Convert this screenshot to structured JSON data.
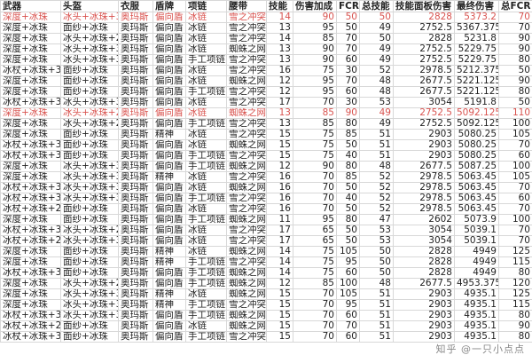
{
  "colors": {
    "highlight": "#d9534f",
    "grid": "#d8d8d8"
  },
  "watermark": "知乎 @一只小点点",
  "columns": [
    "武器",
    "头盔",
    "衣服",
    "盾牌",
    "项链",
    "腰带",
    "技能",
    "伤害加成",
    "FCR",
    "总技能",
    "技能面板伤害",
    "最终伤害",
    "总FCR"
  ],
  "rows": [
    {
      "hl": true,
      "c": [
        "深度+冰珠",
        "冰头+冰珠+3",
        "奥玛斯",
        "偏向盾",
        "冰链",
        "雪之冲突",
        "14",
        "90",
        "50",
        "50",
        "2828",
        "5373.2",
        "70"
      ]
    },
    {
      "c": [
        "深度+冰珠",
        "面纱+冰珠",
        "奥玛斯",
        "偏向盾",
        "冰链",
        "雪之冲突",
        "13",
        "95",
        "50",
        "49",
        "2752.5",
        "5367.375",
        "70"
      ]
    },
    {
      "c": [
        "深度+冰珠",
        "冰头+冰珠+2",
        "奥玛斯",
        "偏向盾",
        "冰链",
        "雪之冲突",
        "14",
        "85",
        "70",
        "50",
        "2828",
        "5231.8",
        "90"
      ]
    },
    {
      "c": [
        "深度+冰珠",
        "冰头+冰珠+3",
        "奥玛斯",
        "偏向盾",
        "冰链",
        "蜘蛛之网",
        "13",
        "90",
        "70",
        "49",
        "2752.5",
        "5229.75",
        "90"
      ]
    },
    {
      "c": [
        "深度+冰珠",
        "冰头+冰珠+3",
        "奥玛斯",
        "偏向盾",
        "手工项链",
        "雪之冲突",
        "13",
        "90",
        "60",
        "49",
        "2752.5",
        "5229.75",
        "80"
      ]
    },
    {
      "c": [
        "冰杖+冰珠+3",
        "面纱+冰珠",
        "奥玛斯",
        "偏向盾",
        "冰链",
        "雪之冲突",
        "16",
        "75",
        "30",
        "52",
        "2978.5",
        "5212.375",
        "50"
      ]
    },
    {
      "c": [
        "深度+冰珠",
        "面纱+冰珠",
        "奥玛斯",
        "偏向盾",
        "冰链",
        "蜘蛛之网",
        "12",
        "95",
        "70",
        "48",
        "2677.5",
        "5221.125",
        "90"
      ]
    },
    {
      "c": [
        "深度+冰珠",
        "面纱+冰珠",
        "奥玛斯",
        "偏向盾",
        "手工项链",
        "雪之冲突",
        "12",
        "95",
        "60",
        "48",
        "2677.5",
        "5221.125",
        "80"
      ]
    },
    {
      "c": [
        "冰杖+冰珠+3",
        "冰头+冰珠+3",
        "奥玛斯",
        "偏向盾",
        "冰链",
        "雪之冲突",
        "17",
        "70",
        "30",
        "53",
        "3054",
        "5191.8",
        "50"
      ]
    },
    {
      "hl": true,
      "c": [
        "深度+冰珠",
        "冰头+冰珠+2",
        "奥玛斯",
        "偏向盾",
        "冰链",
        "蜘蛛之网",
        "13",
        "85",
        "90",
        "49",
        "2752.5",
        "5092.125",
        "110"
      ]
    },
    {
      "c": [
        "深度+冰珠",
        "冰头+冰珠+2",
        "奥玛斯",
        "偏向盾",
        "手工项链",
        "雪之冲突",
        "13",
        "85",
        "80",
        "49",
        "2752.5",
        "5092.125",
        "100"
      ]
    },
    {
      "c": [
        "深度+冰珠",
        "面纱+冰珠",
        "奥玛斯",
        "精神",
        "冰链",
        "雪之冲突",
        "15",
        "75",
        "85",
        "51",
        "2903",
        "5080.25",
        "105"
      ]
    },
    {
      "c": [
        "冰杖+冰珠+3",
        "面纱+冰珠",
        "奥玛斯",
        "偏向盾",
        "冰链",
        "蜘蛛之网",
        "15",
        "75",
        "50",
        "51",
        "2903",
        "5080.25",
        "70"
      ]
    },
    {
      "c": [
        "冰杖+冰珠+3",
        "面纱+冰珠",
        "奥玛斯",
        "偏向盾",
        "手工项链",
        "雪之冲突",
        "15",
        "75",
        "40",
        "51",
        "2903",
        "5080.25",
        "60"
      ]
    },
    {
      "c": [
        "深度+冰珠",
        "冰头+冰珠+3",
        "奥玛斯",
        "偏向盾",
        "手工项链",
        "蜘蛛之网",
        "12",
        "90",
        "80",
        "48",
        "2677.5",
        "5087.25",
        "100"
      ]
    },
    {
      "c": [
        "深度+冰珠",
        "冰头+冰珠+3",
        "奥玛斯",
        "精神",
        "冰链",
        "雪之冲突",
        "16",
        "70",
        "85",
        "52",
        "2978.5",
        "5063.45",
        "105"
      ]
    },
    {
      "c": [
        "冰杖+冰珠+3",
        "冰头+冰珠+3",
        "奥玛斯",
        "偏向盾",
        "冰链",
        "蜘蛛之网",
        "16",
        "70",
        "50",
        "52",
        "2978.5",
        "5063.45",
        "70"
      ]
    },
    {
      "c": [
        "冰杖+冰珠+3",
        "冰头+冰珠+3",
        "奥玛斯",
        "偏向盾",
        "手工项链",
        "雪之冲突",
        "16",
        "70",
        "40",
        "52",
        "2978.5",
        "5063.45",
        "60"
      ]
    },
    {
      "c": [
        "冰杖+冰珠+2",
        "面纱+冰珠",
        "奥玛斯",
        "偏向盾",
        "冰链",
        "雪之冲突",
        "16",
        "70",
        "50",
        "52",
        "2978.5",
        "5063.45",
        "70"
      ]
    },
    {
      "c": [
        "深度+冰珠",
        "面纱+冰珠",
        "奥玛斯",
        "偏向盾",
        "手工项链",
        "蜘蛛之网",
        "11",
        "95",
        "80",
        "47",
        "2602",
        "5073.9",
        "100"
      ]
    },
    {
      "c": [
        "冰杖+冰珠+3",
        "冰头+冰珠+2",
        "奥玛斯",
        "偏向盾",
        "冰链",
        "雪之冲突",
        "17",
        "65",
        "50",
        "53",
        "3054",
        "5039.1",
        "70"
      ]
    },
    {
      "c": [
        "冰杖+冰珠+2",
        "冰头+冰珠+3",
        "奥玛斯",
        "偏向盾",
        "冰链",
        "雪之冲突",
        "17",
        "65",
        "50",
        "53",
        "3054",
        "5039.1",
        "70"
      ]
    },
    {
      "c": [
        "深度+冰珠",
        "面纱+冰珠",
        "奥玛斯",
        "精神",
        "冰链",
        "蜘蛛之网",
        "14",
        "75",
        "105",
        "50",
        "2828",
        "4949",
        "125"
      ]
    },
    {
      "c": [
        "深度+冰珠",
        "面纱+冰珠",
        "奥玛斯",
        "精神",
        "手工项链",
        "雪之冲突",
        "14",
        "75",
        "95",
        "50",
        "2828",
        "4949",
        "115"
      ]
    },
    {
      "c": [
        "冰杖+冰珠+3",
        "面纱+冰珠",
        "奥玛斯",
        "偏向盾",
        "手工项链",
        "蜘蛛之网",
        "14",
        "75",
        "60",
        "50",
        "2828",
        "4949",
        "80"
      ]
    },
    {
      "c": [
        "深度+冰珠",
        "冰头+冰珠+2",
        "奥玛斯",
        "偏向盾",
        "手工项链",
        "蜘蛛之网",
        "12",
        "85",
        "100",
        "48",
        "2677.5",
        "4953.375",
        "120"
      ]
    },
    {
      "c": [
        "深度+冰珠",
        "冰头+冰珠+3",
        "奥玛斯",
        "精神",
        "冰链",
        "蜘蛛之网",
        "15",
        "70",
        "105",
        "51",
        "2903",
        "4935.1",
        "125"
      ]
    },
    {
      "c": [
        "深度+冰珠",
        "冰头+冰珠+3",
        "奥玛斯",
        "精神",
        "手工项链",
        "雪之冲突",
        "15",
        "70",
        "95",
        "51",
        "2903",
        "4935.1",
        "115"
      ]
    },
    {
      "c": [
        "冰杖+冰珠+3",
        "冰头+冰珠+3",
        "奥玛斯",
        "偏向盾",
        "手工项链",
        "蜘蛛之网",
        "15",
        "70",
        "60",
        "51",
        "2903",
        "4935.1",
        "80"
      ]
    },
    {
      "c": [
        "冰杖+冰珠+2",
        "面纱+冰珠",
        "奥玛斯",
        "偏向盾",
        "冰链",
        "蜘蛛之网",
        "15",
        "70",
        "70",
        "51",
        "2903",
        "4935.1",
        "90"
      ]
    },
    {
      "c": [
        "冰杖+冰珠+3",
        "面纱+冰珠",
        "奥玛斯",
        "偏向盾",
        "手工项链",
        "雪之冲突",
        "15",
        "70",
        "60",
        "51",
        "2903",
        "4935.1",
        "80"
      ]
    }
  ]
}
